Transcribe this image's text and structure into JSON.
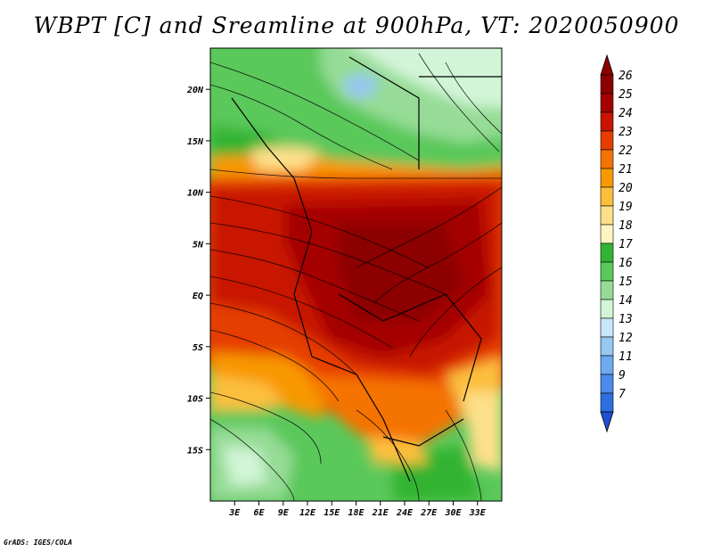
{
  "title": "WBPT [C] and Sreamline at 900hPa, VT: 2020050900",
  "credit": "GrADS: IGES/COLA",
  "map": {
    "lon_range": [
      0,
      36
    ],
    "lat_range": [
      -20,
      24
    ],
    "lat_ticks": [
      {
        "value": 20,
        "label": "20N"
      },
      {
        "value": 15,
        "label": "15N"
      },
      {
        "value": 10,
        "label": "10N"
      },
      {
        "value": 5,
        "label": "5N"
      },
      {
        "value": 0,
        "label": "EQ"
      },
      {
        "value": -5,
        "label": "5S"
      },
      {
        "value": -10,
        "label": "10S"
      },
      {
        "value": -15,
        "label": "15S"
      }
    ],
    "lon_ticks": [
      {
        "value": 3,
        "label": "3E"
      },
      {
        "value": 6,
        "label": "6E"
      },
      {
        "value": 9,
        "label": "9E"
      },
      {
        "value": 12,
        "label": "12E"
      },
      {
        "value": 15,
        "label": "15E"
      },
      {
        "value": 18,
        "label": "18E"
      },
      {
        "value": 21,
        "label": "21E"
      },
      {
        "value": 24,
        "label": "24E"
      },
      {
        "value": 27,
        "label": "27E"
      },
      {
        "value": 30,
        "label": "30E"
      },
      {
        "value": 33,
        "label": "33E"
      }
    ]
  },
  "colorbar": {
    "levels": [
      {
        "label": "26",
        "color": "#8c0000"
      },
      {
        "label": "25",
        "color": "#a50000"
      },
      {
        "label": "24",
        "color": "#c81400"
      },
      {
        "label": "23",
        "color": "#e63c00"
      },
      {
        "label": "22",
        "color": "#f57300"
      },
      {
        "label": "21",
        "color": "#f89800"
      },
      {
        "label": "20",
        "color": "#fcbf3c"
      },
      {
        "label": "19",
        "color": "#fde08a"
      },
      {
        "label": "18",
        "color": "#fff5c0"
      },
      {
        "label": "17",
        "color": "#32b432"
      },
      {
        "label": "16",
        "color": "#5ac85a"
      },
      {
        "label": "15",
        "color": "#96dc96"
      },
      {
        "label": "14",
        "color": "#d2f5d7"
      },
      {
        "label": "13",
        "color": "#c8e6fa"
      },
      {
        "label": "12",
        "color": "#96c8f0"
      },
      {
        "label": "11",
        "color": "#6eaaf0"
      },
      {
        "label": "9",
        "color": "#4b8ceb"
      },
      {
        "label": "7",
        "color": "#2d6ee1"
      }
    ],
    "bottom_color": "#1e50d2"
  }
}
